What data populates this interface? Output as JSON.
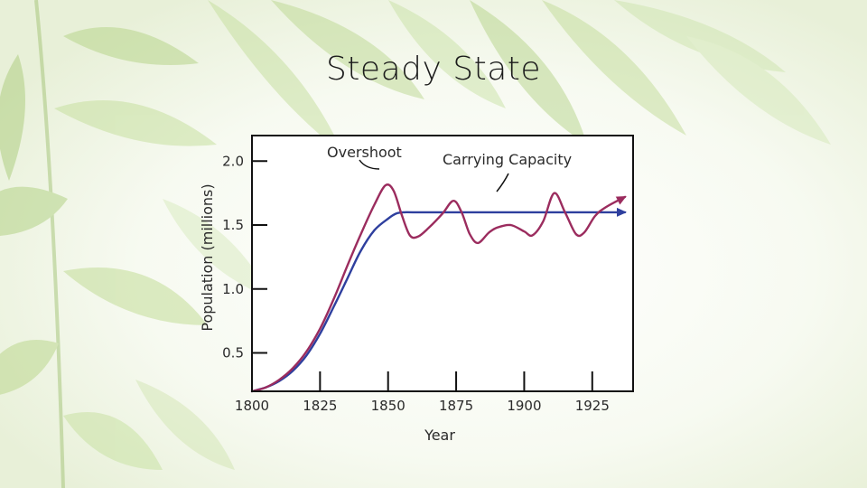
{
  "slide": {
    "title": "Steady State"
  },
  "colors": {
    "actual_population": "#9b2c5e",
    "carrying_capacity": "#2e3f9e",
    "frame": "#111111",
    "leaf_light": "#cfe3a6",
    "leaf_mid": "#b4d388"
  },
  "chart_data": {
    "type": "line",
    "title": "",
    "xlabel": "Year",
    "ylabel": "Population (millions)",
    "xlim": [
      1800,
      1940
    ],
    "ylim": [
      0.2,
      2.2
    ],
    "x_ticks": [
      1800,
      1825,
      1850,
      1875,
      1900,
      1925
    ],
    "x_tick_labels": [
      "1800",
      "1825",
      "1850",
      "1875",
      "1900",
      "1925"
    ],
    "y_ticks": [
      0.5,
      1.0,
      1.5,
      2.0
    ],
    "y_tick_labels": [
      "0.5",
      "1.0",
      "1.5",
      "2.0"
    ],
    "grid": false,
    "legend": "none",
    "series": [
      {
        "key": "logistic",
        "x": [
          1800,
          1805,
          1810,
          1815,
          1820,
          1825,
          1830,
          1835,
          1840,
          1845,
          1850,
          1853,
          1856,
          1860,
          1880,
          1900,
          1920,
          1937
        ],
        "y": [
          0.2,
          0.23,
          0.28,
          0.36,
          0.48,
          0.65,
          0.86,
          1.08,
          1.3,
          1.46,
          1.55,
          1.59,
          1.6,
          1.6,
          1.6,
          1.6,
          1.6,
          1.6
        ],
        "arrow_end": true
      },
      {
        "key": "overshoot",
        "x": [
          1800,
          1805,
          1810,
          1815,
          1820,
          1825,
          1830,
          1835,
          1840,
          1845,
          1849,
          1852,
          1855,
          1858,
          1861,
          1865,
          1870,
          1874,
          1877,
          1880,
          1883,
          1887,
          1890,
          1895,
          1900,
          1903,
          1907,
          1911,
          1915,
          1919,
          1922,
          1926,
          1930,
          1937
        ],
        "y": [
          0.2,
          0.23,
          0.29,
          0.38,
          0.51,
          0.69,
          0.92,
          1.18,
          1.43,
          1.66,
          1.81,
          1.77,
          1.58,
          1.42,
          1.41,
          1.48,
          1.59,
          1.69,
          1.6,
          1.43,
          1.36,
          1.44,
          1.48,
          1.5,
          1.45,
          1.42,
          1.53,
          1.75,
          1.6,
          1.43,
          1.44,
          1.57,
          1.64,
          1.72
        ],
        "arrow_end": true
      }
    ],
    "annotations": [
      {
        "text": "Overshoot",
        "points_to": [
          1851,
          1.78
        ]
      },
      {
        "text": "Carrying Capacity",
        "points_to": [
          1883,
          1.62
        ]
      }
    ]
  }
}
